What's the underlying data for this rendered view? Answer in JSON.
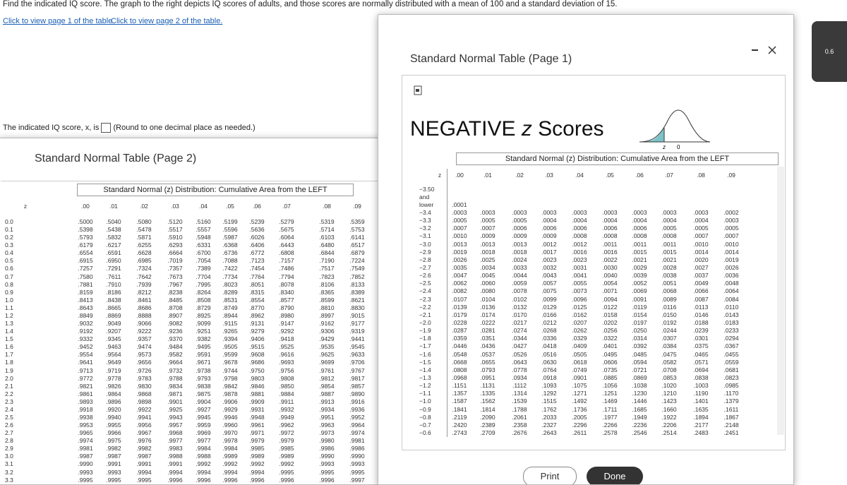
{
  "question": {
    "prompt": "Find the indicated IQ score. The graph to the right depicts IQ scores of adults, and those scores are normally distributed with a mean of 100 and a standard deviation of 15.",
    "links": [
      "Click to view page 1 of the table.",
      "Click to view page 2 of the table."
    ],
    "answer_prefix": "The indicated IQ score, x, is",
    "answer_note": "(Round to one decimal place as needed.)"
  },
  "badge": "0.6",
  "page2": {
    "title": "Standard Normal Table (Page 2)",
    "caption": "Standard Normal (z) Distribution: Cumulative Area from the LEFT",
    "columns": [
      "z",
      ".00",
      ".01",
      ".02",
      ".03",
      ".04",
      ".05",
      ".06",
      ".07",
      ".08",
      ".09"
    ],
    "rows": [
      [
        "0.0",
        ".5000",
        ".5040",
        ".5080",
        ".5120",
        ".5160",
        ".5199",
        ".5239",
        ".5279",
        ".5319",
        ".5359"
      ],
      [
        "0.1",
        ".5398",
        ".5438",
        ".5478",
        ".5517",
        ".5557",
        ".5596",
        ".5636",
        ".5675",
        ".5714",
        ".5753"
      ],
      [
        "0.2",
        ".5793",
        ".5832",
        ".5871",
        ".5910",
        ".5948",
        ".5987",
        ".6026",
        ".6064",
        ".6103",
        ".6141"
      ],
      [
        "0.3",
        ".6179",
        ".6217",
        ".6255",
        ".6293",
        ".6331",
        ".6368",
        ".6406",
        ".6443",
        ".6480",
        ".6517"
      ],
      [
        "0.4",
        ".6554",
        ".6591",
        ".6628",
        ".6664",
        ".6700",
        ".6736",
        ".6772",
        ".6808",
        ".6844",
        ".6879"
      ],
      [
        "0.5",
        ".6915",
        ".6950",
        ".6985",
        ".7019",
        ".7054",
        ".7088",
        ".7123",
        ".7157",
        ".7190",
        ".7224"
      ],
      [
        "0.6",
        ".7257",
        ".7291",
        ".7324",
        ".7357",
        ".7389",
        ".7422",
        ".7454",
        ".7486",
        ".7517",
        ".7549"
      ],
      [
        "0.7",
        ".7580",
        ".7611",
        ".7642",
        ".7673",
        ".7704",
        ".7734",
        ".7764",
        ".7794",
        ".7823",
        ".7852"
      ],
      [
        "0.8",
        ".7881",
        ".7910",
        ".7939",
        ".7967",
        ".7995",
        ".8023",
        ".8051",
        ".8078",
        ".8106",
        ".8133"
      ],
      [
        "0.9",
        ".8159",
        ".8186",
        ".8212",
        ".8238",
        ".8264",
        ".8289",
        ".8315",
        ".8340",
        ".8365",
        ".8389"
      ],
      [
        "1.0",
        ".8413",
        ".8438",
        ".8461",
        ".8485",
        ".8508",
        ".8531",
        ".8554",
        ".8577",
        ".8599",
        ".8621"
      ],
      [
        "1.1",
        ".8643",
        ".8665",
        ".8686",
        ".8708",
        ".8729",
        ".8749",
        ".8770",
        ".8790",
        ".8810",
        ".8830"
      ],
      [
        "1.2",
        ".8849",
        ".8869",
        ".8888",
        ".8907",
        ".8925",
        ".8944",
        ".8962",
        ".8980",
        ".8997",
        ".9015"
      ],
      [
        "1.3",
        ".9032",
        ".9049",
        ".9066",
        ".9082",
        ".9099",
        ".9115",
        ".9131",
        ".9147",
        ".9162",
        ".9177"
      ],
      [
        "1.4",
        ".9192",
        ".9207",
        ".9222",
        ".9236",
        ".9251",
        ".9265",
        ".9279",
        ".9292",
        ".9306",
        ".9319"
      ],
      [
        "1.5",
        ".9332",
        ".9345",
        ".9357",
        ".9370",
        ".9382",
        ".9394",
        ".9406",
        ".9418",
        ".9429",
        ".9441"
      ],
      [
        "1.6",
        ".9452",
        ".9463",
        ".9474",
        ".9484",
        ".9495",
        ".9505",
        ".9515",
        ".9525",
        ".9535",
        ".9545"
      ],
      [
        "1.7",
        ".9554",
        ".9564",
        ".9573",
        ".9582",
        ".9591",
        ".9599",
        ".9608",
        ".9616",
        ".9625",
        ".9633"
      ],
      [
        "1.8",
        ".9641",
        ".9649",
        ".9656",
        ".9664",
        ".9671",
        ".9678",
        ".9686",
        ".9693",
        ".9699",
        ".9706"
      ],
      [
        "1.9",
        ".9713",
        ".9719",
        ".9726",
        ".9732",
        ".9738",
        ".9744",
        ".9750",
        ".9756",
        ".9761",
        ".9767"
      ],
      [
        "2.0",
        ".9772",
        ".9778",
        ".9783",
        ".9788",
        ".9793",
        ".9798",
        ".9803",
        ".9808",
        ".9812",
        ".9817"
      ],
      [
        "2.1",
        ".9821",
        ".9826",
        ".9830",
        ".9834",
        ".9838",
        ".9842",
        ".9846",
        ".9850",
        ".9854",
        ".9857"
      ],
      [
        "2.2",
        ".9861",
        ".9864",
        ".9868",
        ".9871",
        ".9875",
        ".9878",
        ".9881",
        ".9884",
        ".9887",
        ".9890"
      ],
      [
        "2.3",
        ".9893",
        ".9896",
        ".9898",
        ".9901",
        ".9904",
        ".9906",
        ".9909",
        ".9911",
        ".9913",
        ".9916"
      ],
      [
        "2.4",
        ".9918",
        ".9920",
        ".9922",
        ".9925",
        ".9927",
        ".9929",
        ".9931",
        ".9932",
        ".9934",
        ".9936"
      ],
      [
        "2.5",
        ".9938",
        ".9940",
        ".9941",
        ".9943",
        ".9945",
        ".9946",
        ".9948",
        ".9949",
        ".9951",
        ".9952"
      ],
      [
        "2.6",
        ".9953",
        ".9955",
        ".9956",
        ".9957",
        ".9959",
        ".9960",
        ".9961",
        ".9962",
        ".9963",
        ".9964"
      ],
      [
        "2.7",
        ".9965",
        ".9966",
        ".9967",
        ".9968",
        ".9969",
        ".9970",
        ".9971",
        ".9972",
        ".9973",
        ".9974"
      ],
      [
        "2.8",
        ".9974",
        ".9975",
        ".9976",
        ".9977",
        ".9977",
        ".9978",
        ".9979",
        ".9979",
        ".9980",
        ".9981"
      ],
      [
        "2.9",
        ".9981",
        ".9982",
        ".9982",
        ".9983",
        ".9984",
        ".9984",
        ".9985",
        ".9985",
        ".9986",
        ".9986"
      ],
      [
        "3.0",
        ".9987",
        ".9987",
        ".9987",
        ".9988",
        ".9988",
        ".9989",
        ".9989",
        ".9989",
        ".9990",
        ".9990"
      ],
      [
        "3.1",
        ".9990",
        ".9991",
        ".9991",
        ".9991",
        ".9992",
        ".9992",
        ".9992",
        ".9992",
        ".9993",
        ".9993"
      ],
      [
        "3.2",
        ".9993",
        ".9993",
        ".9994",
        ".9994",
        ".9994",
        ".9994",
        ".9994",
        ".9995",
        ".9995",
        ".9995"
      ],
      [
        "3.3",
        ".9995",
        ".9995",
        ".9995",
        ".9996",
        ".9996",
        ".9996",
        ".9996",
        ".9996",
        ".9996",
        ".9997"
      ]
    ]
  },
  "page1": {
    "title": "Standard Normal Table (Page 1)",
    "heading_word": "NEGATIVE",
    "heading_z": "z",
    "heading_rest": "Scores",
    "curve_labels": [
      "z",
      "0"
    ],
    "caption": "Standard Normal (z) Distribution: Cumulative Area from the LEFT",
    "columns": [
      "z",
      ".00",
      ".01",
      ".02",
      ".03",
      ".04",
      ".05",
      ".06",
      ".07",
      ".08",
      ".09"
    ],
    "first_row": {
      "z": [
        "−3.50",
        "and",
        "lower"
      ],
      "value": ".0001"
    },
    "rows": [
      [
        "−3.4",
        ".0003",
        ".0003",
        ".0003",
        ".0003",
        ".0003",
        ".0003",
        ".0003",
        ".0003",
        ".0003",
        ".0002"
      ],
      [
        "−3.3",
        ".0005",
        ".0005",
        ".0005",
        ".0004",
        ".0004",
        ".0004",
        ".0004",
        ".0004",
        ".0004",
        ".0003"
      ],
      [
        "−3.2",
        ".0007",
        ".0007",
        ".0006",
        ".0006",
        ".0006",
        ".0006",
        ".0006",
        ".0005",
        ".0005",
        ".0005"
      ],
      [
        "−3.1",
        ".0010",
        ".0009",
        ".0009",
        ".0009",
        ".0008",
        ".0008",
        ".0008",
        ".0008",
        ".0007",
        ".0007"
      ],
      [
        "−3.0",
        ".0013",
        ".0013",
        ".0013",
        ".0012",
        ".0012",
        ".0011",
        ".0011",
        ".0011",
        ".0010",
        ".0010"
      ],
      [
        "−2.9",
        ".0019",
        ".0018",
        ".0018",
        ".0017",
        ".0016",
        ".0016",
        ".0015",
        ".0015",
        ".0014",
        ".0014"
      ],
      [
        "−2.8",
        ".0026",
        ".0025",
        ".0024",
        ".0023",
        ".0023",
        ".0022",
        ".0021",
        ".0021",
        ".0020",
        ".0019"
      ],
      [
        "−2.7",
        ".0035",
        ".0034",
        ".0033",
        ".0032",
        ".0031",
        ".0030",
        ".0029",
        ".0028",
        ".0027",
        ".0026"
      ],
      [
        "−2.6",
        ".0047",
        ".0045",
        ".0044",
        ".0043",
        ".0041",
        ".0040",
        ".0039",
        ".0038",
        ".0037",
        ".0036"
      ],
      [
        "−2.5",
        ".0062",
        ".0060",
        ".0059",
        ".0057",
        ".0055",
        ".0054",
        ".0052",
        ".0051",
        ".0049",
        ".0048"
      ],
      [
        "−2.4",
        ".0082",
        ".0080",
        ".0078",
        ".0075",
        ".0073",
        ".0071",
        ".0069",
        ".0068",
        ".0066",
        ".0064"
      ],
      [
        "−2.3",
        ".0107",
        ".0104",
        ".0102",
        ".0099",
        ".0096",
        ".0094",
        ".0091",
        ".0089",
        ".0087",
        ".0084"
      ],
      [
        "−2.2",
        ".0139",
        ".0136",
        ".0132",
        ".0129",
        ".0125",
        ".0122",
        ".0119",
        ".0116",
        ".0113",
        ".0110"
      ],
      [
        "−2.1",
        ".0179",
        ".0174",
        ".0170",
        ".0166",
        ".0162",
        ".0158",
        ".0154",
        ".0150",
        ".0146",
        ".0143"
      ],
      [
        "−2.0",
        ".0228",
        ".0222",
        ".0217",
        ".0212",
        ".0207",
        ".0202",
        ".0197",
        ".0192",
        ".0188",
        ".0183"
      ],
      [
        "−1.9",
        ".0287",
        ".0281",
        ".0274",
        ".0268",
        ".0262",
        ".0256",
        ".0250",
        ".0244",
        ".0239",
        ".0233"
      ],
      [
        "−1.8",
        ".0359",
        ".0351",
        ".0344",
        ".0336",
        ".0329",
        ".0322",
        ".0314",
        ".0307",
        ".0301",
        ".0294"
      ],
      [
        "−1.7",
        ".0446",
        ".0436",
        ".0427",
        ".0418",
        ".0409",
        ".0401",
        ".0392",
        ".0384",
        ".0375",
        ".0367"
      ],
      [
        "−1.6",
        ".0548",
        ".0537",
        ".0526",
        ".0516",
        ".0505",
        ".0495",
        ".0485",
        ".0475",
        ".0465",
        ".0455"
      ],
      [
        "−1.5",
        ".0668",
        ".0655",
        ".0643",
        ".0630",
        ".0618",
        ".0606",
        ".0594",
        ".0582",
        ".0571",
        ".0559"
      ],
      [
        "−1.4",
        ".0808",
        ".0793",
        ".0778",
        ".0764",
        ".0749",
        ".0735",
        ".0721",
        ".0708",
        ".0694",
        ".0681"
      ],
      [
        "−1.3",
        ".0968",
        ".0951",
        ".0934",
        ".0918",
        ".0901",
        ".0885",
        ".0869",
        ".0853",
        ".0838",
        ".0823"
      ],
      [
        "−1.2",
        ".1151",
        ".1131",
        ".1112",
        ".1093",
        ".1075",
        ".1056",
        ".1038",
        ".1020",
        ".1003",
        ".0985"
      ],
      [
        "−1.1",
        ".1357",
        ".1335",
        ".1314",
        ".1292",
        ".1271",
        ".1251",
        ".1230",
        ".1210",
        ".1190",
        ".1170"
      ],
      [
        "−1.0",
        ".1587",
        ".1562",
        ".1539",
        ".1515",
        ".1492",
        ".1469",
        ".1446",
        ".1423",
        ".1401",
        ".1379"
      ],
      [
        "−0.9",
        ".1841",
        ".1814",
        ".1788",
        ".1762",
        ".1736",
        ".1711",
        ".1685",
        ".1660",
        ".1635",
        ".1611"
      ],
      [
        "−0.8",
        ".2119",
        ".2090",
        ".2061",
        ".2033",
        ".2005",
        ".1977",
        ".1949",
        ".1922",
        ".1894",
        ".1867"
      ],
      [
        "−0.7",
        ".2420",
        ".2389",
        ".2358",
        ".2327",
        ".2296",
        ".2266",
        ".2236",
        ".2206",
        ".2177",
        ".2148"
      ],
      [
        "−0.6",
        ".2743",
        ".2709",
        ".2676",
        ".2643",
        ".2611",
        ".2578",
        ".2546",
        ".2514",
        ".2483",
        ".2451"
      ]
    ]
  },
  "buttons": {
    "print": "Print",
    "done": "Done"
  }
}
